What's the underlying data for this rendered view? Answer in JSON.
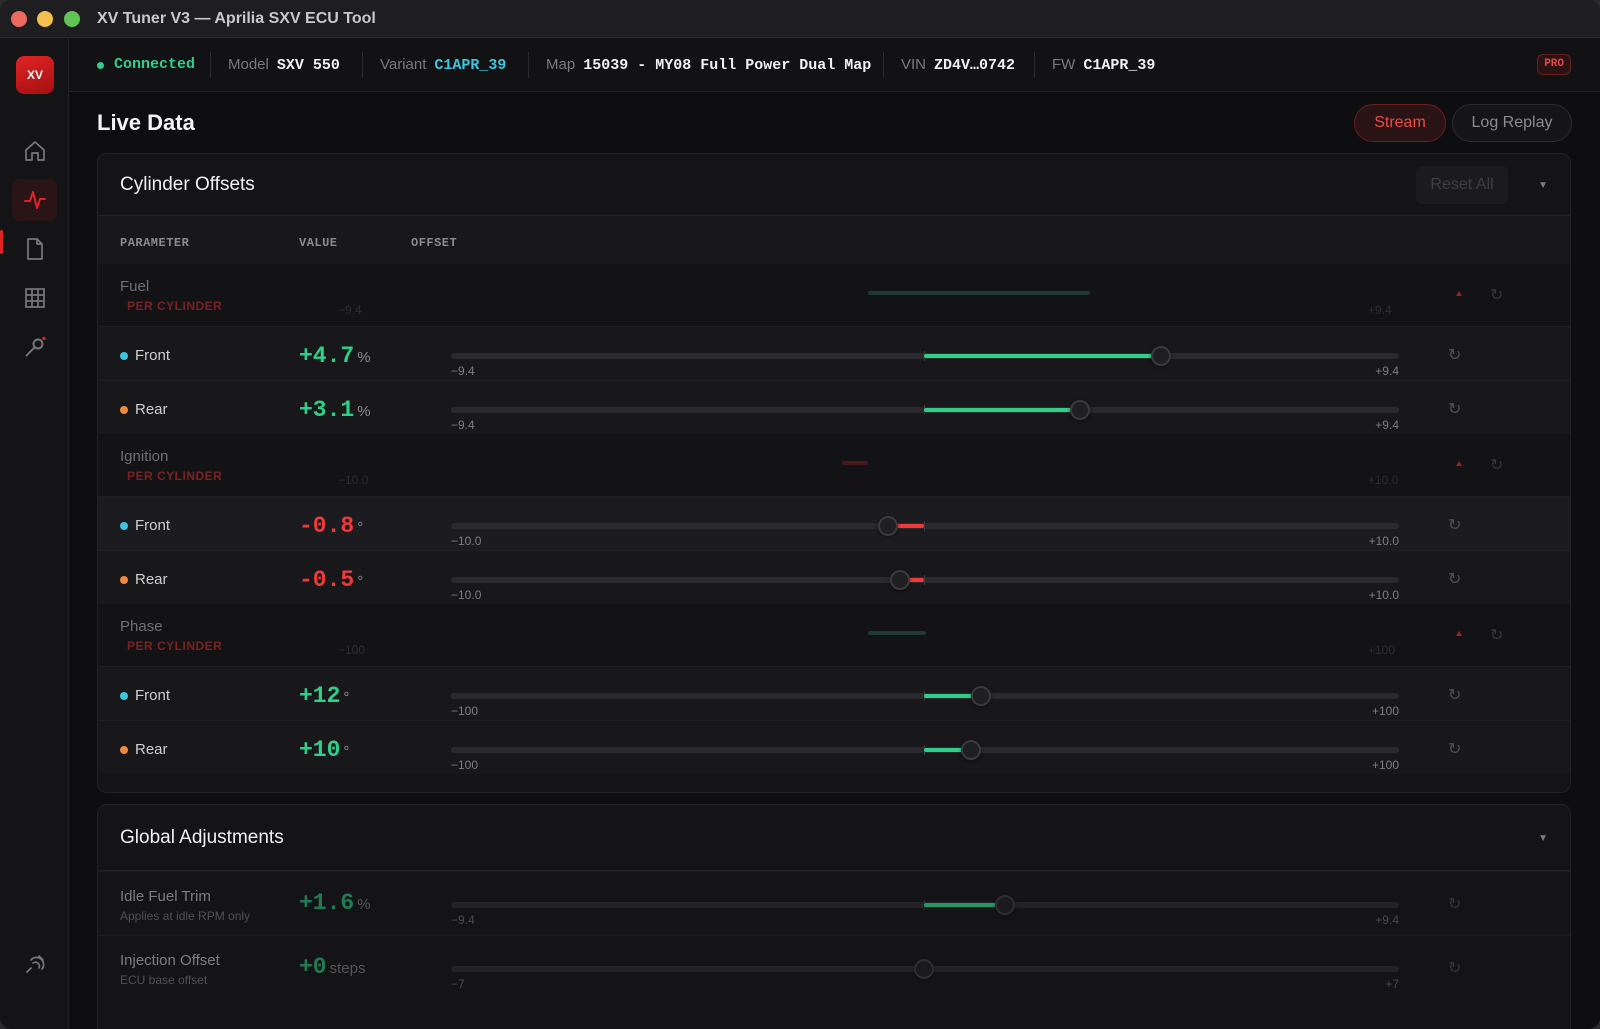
{
  "window": {
    "title": "XV Tuner V3 — Aprilia SXV ECU Tool"
  },
  "sidebar": {
    "logo": "XV",
    "items": [
      "home-icon",
      "activity-icon",
      "file-icon",
      "grid-icon",
      "wrench-icon"
    ],
    "footer_icon": "plug-icon"
  },
  "status": {
    "connection": "Connected",
    "model_label": "Model",
    "model": "SXV 550",
    "variant_label": "Variant",
    "variant": "C1APR_39",
    "map_label": "Map",
    "map": "15039 - MY08 Full Power Dual Map",
    "vin_label": "VIN",
    "vin": "ZD4V…0742",
    "fw_label": "FW",
    "fw": "C1APR_39",
    "badge": "PRO"
  },
  "page": {
    "title": "Live Data",
    "stream_label": "Stream",
    "replay_label": "Log Replay"
  },
  "colors": {
    "accent": "#e02424",
    "positive": "#2fcf8a",
    "negative": "#ee3a3a",
    "front": "#3ec6e0",
    "rear": "#f08a3c"
  },
  "cylinder_offsets": {
    "title": "Cylinder Offsets",
    "reset_all": "Reset All",
    "headers": {
      "parameter": "PARAMETER",
      "value": "VALUE",
      "offset": "OFFSET"
    },
    "groups": [
      {
        "name": "Fuel",
        "sub": "PER CYLINDER",
        "min": "−9.4",
        "max": "+9.4",
        "rows": [
          {
            "label": "Front",
            "value": "+4.7",
            "unit": "%",
            "fraction": 0.25
          },
          {
            "label": "Rear",
            "value": "+3.1",
            "unit": "%",
            "fraction": 0.165
          }
        ]
      },
      {
        "name": "Ignition",
        "sub": "PER CYLINDER",
        "min": "−10.0",
        "max": "+10.0",
        "rows": [
          {
            "label": "Front",
            "value": "-0.8",
            "unit": "°",
            "fraction": -0.038
          },
          {
            "label": "Rear",
            "value": "-0.5",
            "unit": "°",
            "fraction": -0.025
          }
        ]
      },
      {
        "name": "Phase",
        "sub": "PER CYLINDER",
        "min": "−100",
        "max": "+100",
        "rows": [
          {
            "label": "Front",
            "value": "+12",
            "unit": "°",
            "fraction": 0.06
          },
          {
            "label": "Rear",
            "value": "+10",
            "unit": "°",
            "fraction": 0.05
          }
        ]
      }
    ]
  },
  "global_adjustments": {
    "title": "Global Adjustments",
    "rows": [
      {
        "name": "Idle Fuel Trim",
        "desc": "Applies at idle RPM only",
        "value": "+1.6",
        "unit": "%",
        "min": "−9.4",
        "max": "+9.4",
        "fraction": 0.085
      },
      {
        "name": "Injection Offset",
        "desc": "ECU base offset",
        "value": "+0",
        "unit": "steps",
        "min": "−7",
        "max": "+7",
        "fraction": 0.0
      }
    ]
  }
}
